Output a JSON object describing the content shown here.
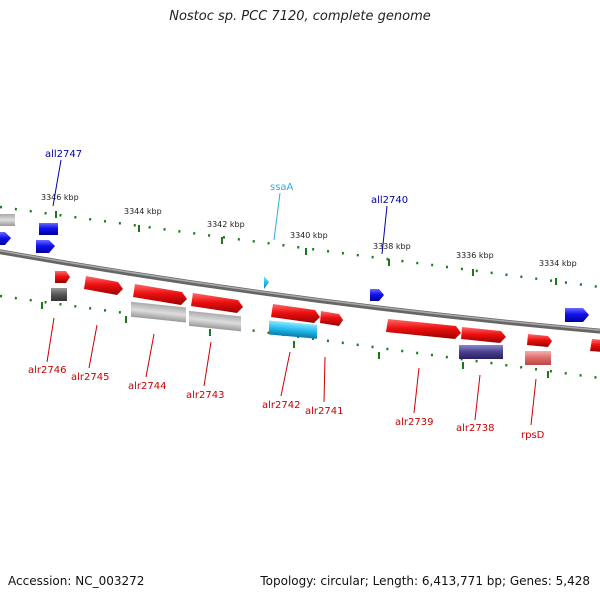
{
  "title": "Nostoc sp. PCC 7120, complete genome",
  "footer": {
    "accession": "Accession: NC_003272",
    "summary": "Topology: circular; Length: 6,413,771 bp; Genes: 5,428"
  },
  "colors": {
    "forward": "#ee1111",
    "reverse": "#1111ee",
    "rna": "#22bbee",
    "backbone": "#888888",
    "ticks": "#1a7a1a",
    "forward_label": "#cc0000",
    "reverse_label": "#0000aa",
    "rna_label": "#33aadd"
  },
  "kbp_labels": [
    "3346 kbp",
    "3344 kbp",
    "3342 kbp",
    "3340 kbp",
    "3338 kbp",
    "3336 kbp",
    "3334 kbp"
  ],
  "forward_genes": [
    "alr2746",
    "alr2745",
    "alr2744",
    "alr2743",
    "alr2742",
    "alr2741",
    "alr2739",
    "alr2738",
    "rpsD"
  ],
  "reverse_genes": [
    "all2747",
    "all2740"
  ],
  "rna_genes": [
    "ssaA"
  ]
}
